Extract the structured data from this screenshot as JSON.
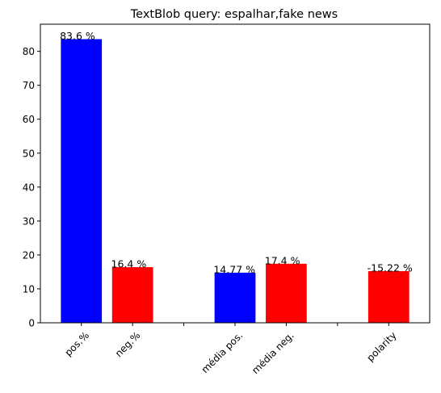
{
  "chart_data": {
    "type": "bar",
    "title": "TextBlob query: espalhar,fake news",
    "xlabel": "",
    "ylabel": "",
    "ylim": [
      0,
      88
    ],
    "yticks": [
      0,
      10,
      20,
      30,
      40,
      50,
      60,
      70,
      80
    ],
    "x_tick_positions": [
      0,
      1,
      2,
      3,
      4,
      5,
      6
    ],
    "bars": [
      {
        "x": 0,
        "value": 83.6,
        "color": "#0000ff",
        "label": "83.6 %",
        "category": "pos.%"
      },
      {
        "x": 1,
        "value": 16.4,
        "color": "#ff0000",
        "label": "16.4 %",
        "category": "neg.%"
      },
      {
        "x": 3,
        "value": 14.77,
        "color": "#0000ff",
        "label": "14.77 %",
        "category": "média pos."
      },
      {
        "x": 4,
        "value": 17.4,
        "color": "#ff0000",
        "label": "17.4 %",
        "category": "média neg."
      },
      {
        "x": 6,
        "value": 15.22,
        "color": "#ff0000",
        "label": "-15.22 %",
        "category": "polarity"
      }
    ],
    "grid": false,
    "legend": "none"
  }
}
